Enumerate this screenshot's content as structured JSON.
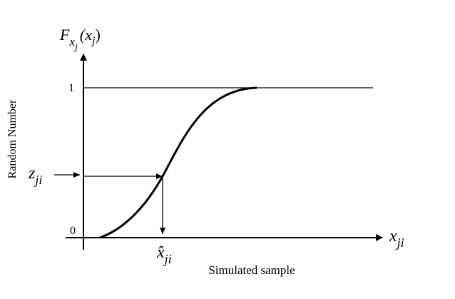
{
  "axis_title": {
    "symbol": "F",
    "subscript": "x",
    "sub_subscript": "j",
    "argument_open": "(x",
    "argument_subscript": "j",
    "argument_close": ")"
  },
  "y_axis_label": "Random Number",
  "y_marks": {
    "top": "1",
    "bottom": "0"
  },
  "random_number": {
    "symbol": "z",
    "subscript": "ji"
  },
  "x_axis_symbol": {
    "symbol": "x",
    "subscript": "ji"
  },
  "sample_value": {
    "symbol": "x̂",
    "subscript": "ji"
  },
  "x_axis_label": "Simulated sample"
}
